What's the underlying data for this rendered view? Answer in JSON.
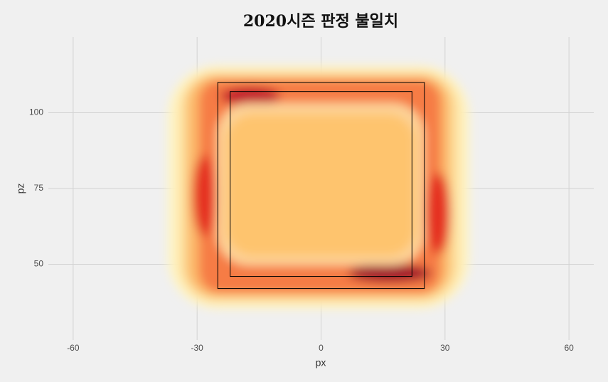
{
  "chart_data": {
    "type": "density",
    "title": "2020시즌 판정 불일치",
    "x_label": "px",
    "y_label": "pz",
    "xlim": [
      -66,
      66
    ],
    "ylim": [
      25,
      125
    ],
    "xticks": [
      -60,
      -30,
      0,
      30,
      60
    ],
    "yticks": [
      50,
      75,
      100
    ],
    "grid": true,
    "zones": [
      {
        "xmin": -25,
        "xmax": 25,
        "ymin": 42,
        "ymax": 110
      },
      {
        "xmin": -22,
        "xmax": 22,
        "ymin": 46,
        "ymax": 107
      }
    ]
  }
}
